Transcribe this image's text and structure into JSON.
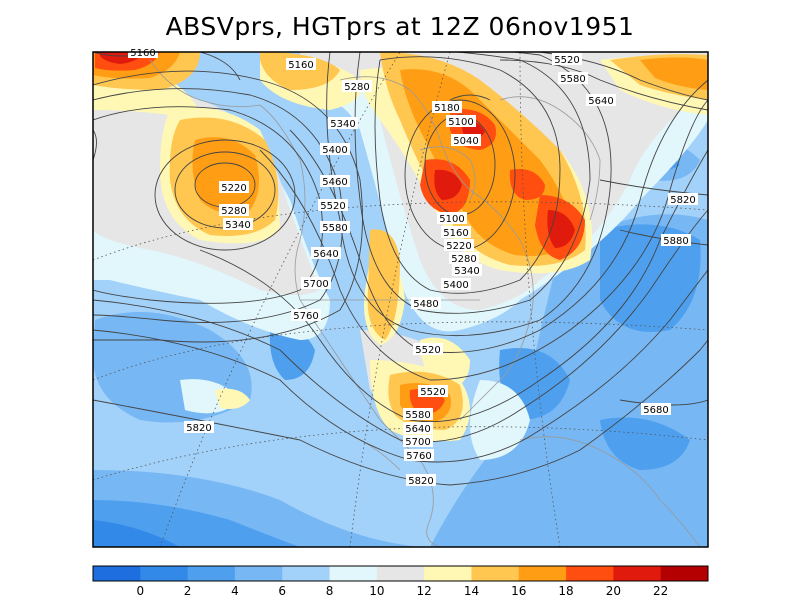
{
  "title": "ABSVprs, HGTprs at 12Z  06nov1951",
  "contour_labels": [
    "5160",
    "5520",
    "5580",
    "5640",
    "5160",
    "5280",
    "5180",
    "5100",
    "5340",
    "5040",
    "5400",
    "5460",
    "5220",
    "5520",
    "5280",
    "5340",
    "5580",
    "5100",
    "5160",
    "5640",
    "5220",
    "5820",
    "5280",
    "5880",
    "5700",
    "5340",
    "5400",
    "5760",
    "5480",
    "5520",
    "5520",
    "5580",
    "5640",
    "5700",
    "5680",
    "5820",
    "5760",
    "5820"
  ],
  "colorbar": {
    "colors": [
      "#1e6ee0",
      "#3289e8",
      "#4ea0ef",
      "#76b7f4",
      "#a2d1f9",
      "#e1f7fc",
      "#e6e6e6",
      "#fff8b4",
      "#ffc650",
      "#ff9e14",
      "#ff4e10",
      "#e01a0c",
      "#b40000"
    ],
    "tick_labels": [
      "0",
      "2",
      "4",
      "6",
      "8",
      "10",
      "12",
      "14",
      "16",
      "18",
      "20",
      "22"
    ]
  }
}
